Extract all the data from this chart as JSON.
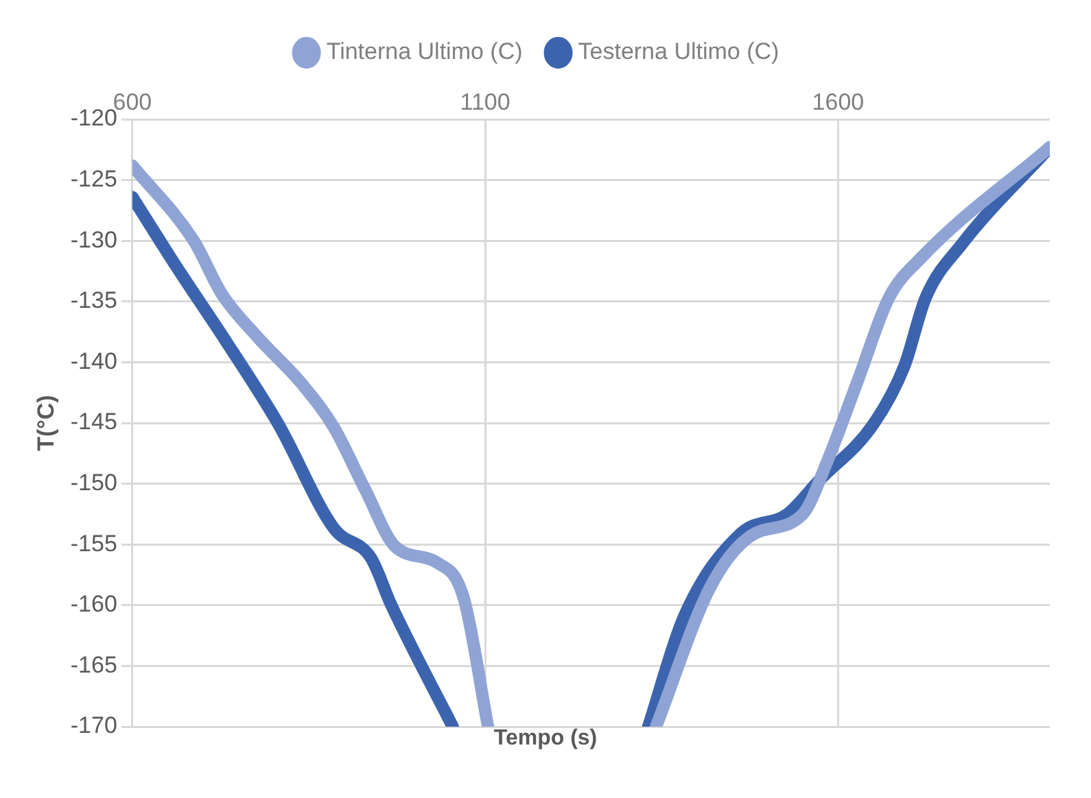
{
  "chart_data": {
    "type": "line",
    "xlabel": "Tempo (s)",
    "ylabel": "T(°C)",
    "xlim": [
      600,
      1900
    ],
    "xticks": [
      600,
      1100,
      1600
    ],
    "ylim": [
      -170,
      -120
    ],
    "yticks": [
      -170,
      -165,
      -160,
      -155,
      -150,
      -145,
      -140,
      -135,
      -130,
      -125,
      -120
    ],
    "grid": true,
    "legend": "top",
    "marker": "none",
    "line_style": "solid",
    "series": [
      {
        "name": "Tinterna Ultimo (C)",
        "color": "#8fa4d4",
        "x": [
          600,
          687,
          727,
          777,
          842,
          886,
          930,
          973,
          1032,
          1069,
          1104,
          1220,
          1342,
          1419,
          1476,
          1550,
          1585,
          1628,
          1672,
          1716,
          1900
        ],
        "values": [
          -123.8,
          -130,
          -134.4,
          -137.9,
          -141.9,
          -145.4,
          -150.5,
          -155.2,
          -156.5,
          -159.3,
          -170,
          null,
          -170,
          -158.5,
          -154.3,
          -152.5,
          -148.1,
          -141.5,
          -134.7,
          -131.5,
          -122.3
        ]
      },
      {
        "name": "Testerna Ultimo (C)",
        "color": "#3c64ae",
        "x": [
          600,
          661,
          733,
          807,
          886,
          938,
          967,
          1054,
          1200,
          1331,
          1382,
          1462,
          1528,
          1572,
          1650,
          1694,
          1724,
          1775,
          1900
        ],
        "values": [
          -126.4,
          -132,
          -138.3,
          -145.1,
          -153.7,
          -156.1,
          -160,
          -170,
          null,
          -170,
          -160.9,
          -154.1,
          -152.5,
          -149.8,
          -145.1,
          -140.3,
          -134.7,
          -130.3,
          -122.3
        ]
      }
    ]
  }
}
